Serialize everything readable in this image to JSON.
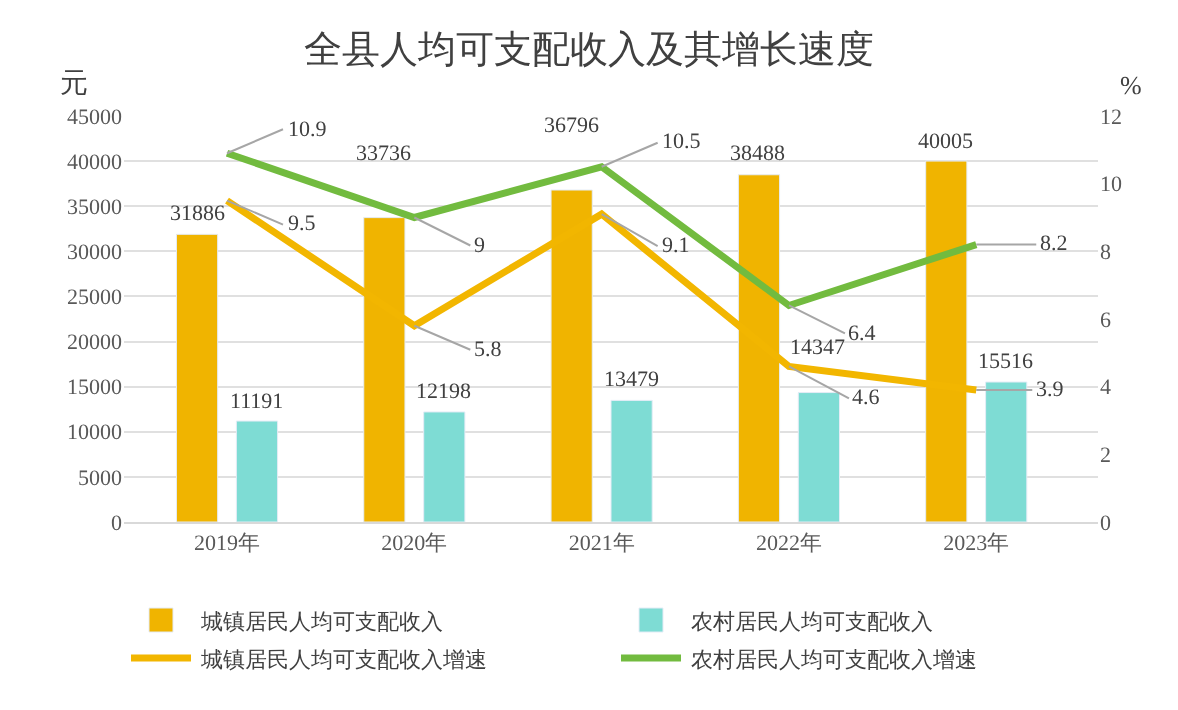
{
  "chart_data": {
    "type": "bar",
    "title": "全县人均可支配收入及其增长速度",
    "ylabel": "元",
    "y2label": "%",
    "categories": [
      "2019年",
      "2020年",
      "2021年",
      "2022年",
      "2023年"
    ],
    "series": [
      {
        "name": "城镇居民人均可支配收入",
        "color": "#f0b400",
        "values": [
          31886,
          33736,
          36796,
          38488,
          40005
        ]
      },
      {
        "name": "农村居民人均可支配收入",
        "color": "#7edcd4",
        "values": [
          11191,
          12198,
          13479,
          14347,
          15516
        ]
      },
      {
        "name": "城镇居民人均可支配收入增速",
        "type": "line",
        "axis": "y2",
        "color": "#f2b600",
        "values": [
          9.5,
          5.8,
          9.1,
          4.6,
          3.9
        ]
      },
      {
        "name": "农村居民人均可支配收入增速",
        "type": "line",
        "axis": "y2",
        "color": "#72bb3f",
        "values": [
          10.9,
          9,
          10.5,
          6.4,
          8.2
        ]
      }
    ],
    "ylim": [
      0,
      45000
    ],
    "yticks": [
      0,
      5000,
      10000,
      15000,
      20000,
      25000,
      30000,
      35000,
      40000,
      45000
    ],
    "y2lim": [
      0,
      12
    ],
    "y2ticks": [
      0,
      2,
      4,
      6,
      8,
      10,
      12
    ],
    "grid": "y",
    "legend": "bottom",
    "data_labels": true,
    "marker": "none",
    "line_style": "solid"
  }
}
